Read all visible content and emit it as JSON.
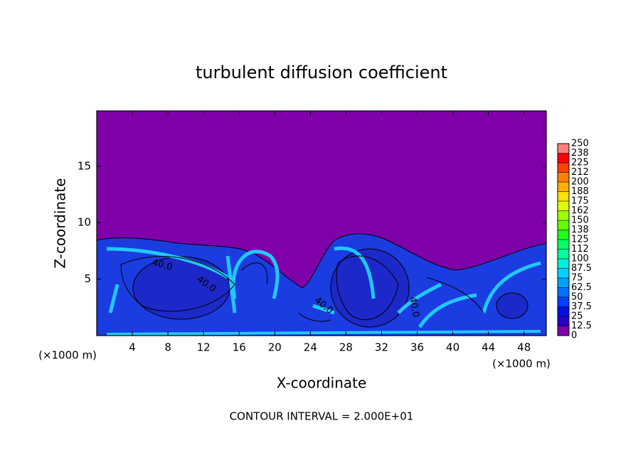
{
  "chart_data": {
    "type": "contour",
    "title": "turbulent diffusion coefficient",
    "x_label": "X-coordinate",
    "y_label": "Z-coordinate",
    "x_unit": "(×1000 m)",
    "xlim": [
      0,
      50.5
    ],
    "ylim": [
      0,
      19.9
    ],
    "xticks": [
      4,
      8,
      12,
      16,
      20,
      24,
      28,
      32,
      36,
      40,
      44,
      48
    ],
    "yticks": [
      5,
      10,
      15
    ],
    "contour_labels": [
      {
        "value": 40,
        "label": "40.0"
      }
    ],
    "contour_interval_label": "CONTOUR INTERVAL = 2.000E+01",
    "colorbar": {
      "ticks": [
        0,
        12.5,
        25,
        37.5,
        50,
        62.5,
        75,
        87.5,
        100,
        {
          "value": 112.5,
          "label": "112"
        },
        125,
        {
          "value": 137.5,
          "label": "138"
        },
        150,
        {
          "value": 162.5,
          "label": "162"
        },
        175,
        {
          "value": 187.5,
          "label": "188"
        },
        200,
        {
          "value": 212.5,
          "label": "212"
        },
        225,
        {
          "value": 237.5,
          "label": "238"
        },
        250
      ],
      "colors": [
        "#7f00a8",
        "#2800c8",
        "#0010e0",
        "#0040ff",
        "#0070ff",
        "#00a0ff",
        "#00d0ff",
        "#00f0e0",
        "#00ffa0",
        "#00ff60",
        "#20ff20",
        "#60ff00",
        "#a0ff00",
        "#e0ff00",
        "#ffe000",
        "#ffb000",
        "#ff8000",
        "#ff4000",
        "#ff0000",
        "#ff8080"
      ]
    }
  }
}
